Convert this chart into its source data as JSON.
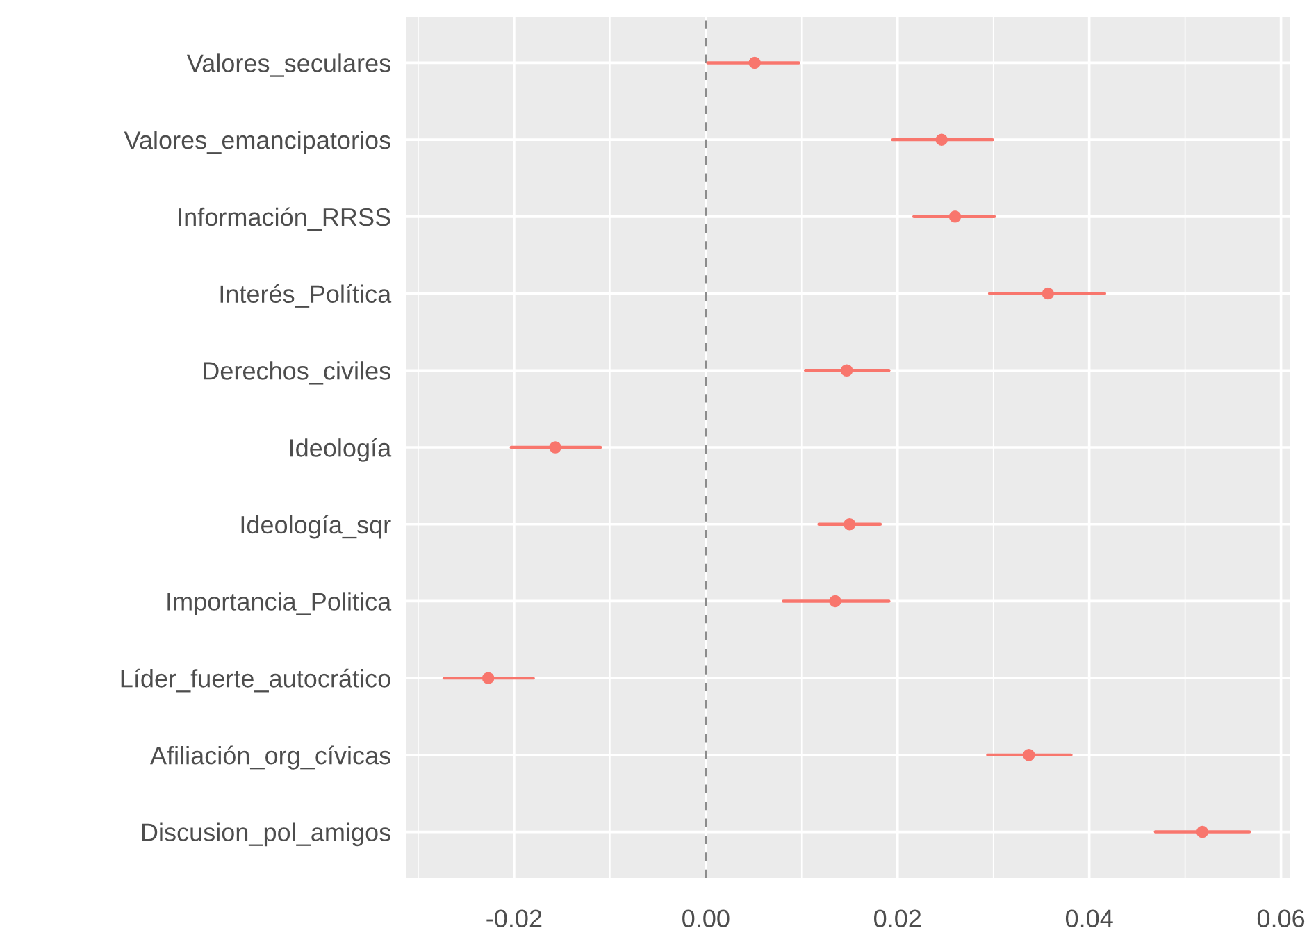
{
  "chart_data": {
    "type": "scatter",
    "orientation": "horizontal",
    "categories": [
      "Valores_seculares",
      "Valores_emancipatorios",
      "Información_RRSS",
      "Interés_Política",
      "Derechos_civiles",
      "Ideología",
      "Ideología_sqr",
      "Importancia_Politica",
      "Líder_fuerte_autocrático",
      "Afiliación_org_cívicas",
      "Discusion_pol_amigos"
    ],
    "values": [
      0.0051,
      0.0246,
      0.026,
      0.0357,
      0.0147,
      -0.0157,
      0.015,
      0.0135,
      -0.0227,
      0.0337,
      0.0518
    ],
    "errors": [
      [
        0.0002,
        0.0097
      ],
      [
        0.0195,
        0.0299
      ],
      [
        0.0217,
        0.0301
      ],
      [
        0.0296,
        0.0416
      ],
      [
        0.0104,
        0.0191
      ],
      [
        -0.0203,
        -0.011
      ],
      [
        0.0118,
        0.0182
      ],
      [
        0.0081,
        0.0191
      ],
      [
        -0.0273,
        -0.018
      ],
      [
        0.0294,
        0.0381
      ],
      [
        0.0469,
        0.0567
      ]
    ],
    "color": "#f8766d",
    "marker": "circle",
    "grid": true,
    "xlim": [
      -0.0313,
      0.0609
    ],
    "xticks": [
      {
        "value": -0.02,
        "label": "-0.02"
      },
      {
        "value": 0.0,
        "label": "0.00"
      },
      {
        "value": 0.02,
        "label": "0.02"
      },
      {
        "value": 0.04,
        "label": "0.04"
      },
      {
        "value": 0.06,
        "label": "0.06"
      }
    ],
    "ref_lines": [
      {
        "axis": "x",
        "value": 0,
        "color": "#8c8c8c",
        "line_style": "dashed"
      }
    ]
  }
}
